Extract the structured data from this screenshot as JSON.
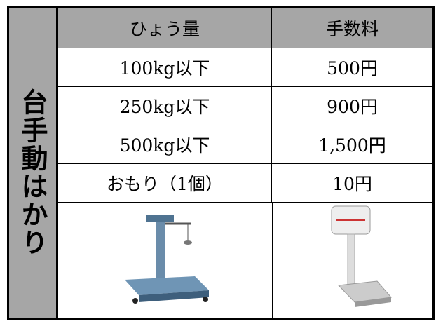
{
  "table": {
    "side_label": "台手動はかり",
    "header": [
      "ひょう量",
      "手数料"
    ],
    "rows": [
      [
        "100kg以下",
        "500円"
      ],
      [
        "250kg以下",
        "900円"
      ],
      [
        "500kg以下",
        "1,500円"
      ],
      [
        "おもり（1個）",
        "10円"
      ]
    ]
  }
}
